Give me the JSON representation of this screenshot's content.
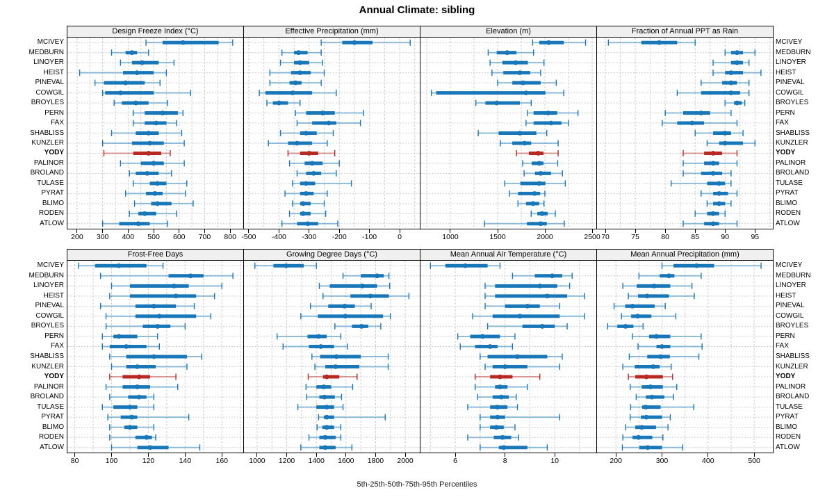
{
  "title": "Annual Climate: sibling",
  "caption": "5th-25th-50th-75th-95th Percentiles",
  "highlight_station": "YODY",
  "percentile_labels": [
    "p5",
    "p25",
    "p50",
    "p75",
    "p95"
  ],
  "stations": [
    "MCIVEY",
    "MEDBURN",
    "LINOYER",
    "HEIST",
    "PINEVAL",
    "COWGIL",
    "BROYLES",
    "PERN",
    "FAX",
    "SHABLISS",
    "KUNZLER",
    "YODY",
    "PALINOR",
    "BROLAND",
    "TULASE",
    "PYRAT",
    "BLIMO",
    "RODEN",
    "ATLOW"
  ],
  "colors": {
    "series": "#1777b8",
    "highlight": "#b92823",
    "grid": "#cfcfcf",
    "panel_header_bg": "#f0f0f0",
    "border": "#000000"
  },
  "chart_data": [
    {
      "type": "percentile-range",
      "title": "Design Freeze Index (°C)",
      "row": 0,
      "col": 0,
      "xlim": [
        162,
        854
      ],
      "ticks": [
        200,
        300,
        400,
        500,
        600,
        700,
        800
      ],
      "tick_labels": [
        "200",
        "300",
        "400",
        "500",
        "600",
        "700",
        "800"
      ],
      "values": [
        [
          470,
          535,
          615,
          755,
          810
        ],
        [
          335,
          390,
          415,
          435,
          480
        ],
        [
          370,
          415,
          455,
          520,
          580
        ],
        [
          210,
          380,
          435,
          500,
          550
        ],
        [
          270,
          305,
          390,
          465,
          525
        ],
        [
          300,
          310,
          370,
          500,
          645
        ],
        [
          345,
          375,
          430,
          480,
          555
        ],
        [
          420,
          465,
          535,
          595,
          615
        ],
        [
          420,
          465,
          510,
          550,
          590
        ],
        [
          335,
          430,
          480,
          520,
          610
        ],
        [
          300,
          415,
          485,
          540,
          620
        ],
        [
          305,
          420,
          480,
          530,
          565
        ],
        [
          370,
          450,
          500,
          540,
          620
        ],
        [
          405,
          430,
          475,
          520,
          570
        ],
        [
          420,
          485,
          515,
          550,
          630
        ],
        [
          390,
          470,
          505,
          535,
          625
        ],
        [
          425,
          490,
          515,
          570,
          655
        ],
        [
          405,
          440,
          465,
          510,
          590
        ],
        [
          300,
          365,
          440,
          485,
          555
        ]
      ]
    },
    {
      "type": "percentile-range",
      "title": "Effective Precipitation (mm)",
      "row": 0,
      "col": 1,
      "xlim": [
        -516,
        69
      ],
      "ticks": [
        -500,
        -400,
        -300,
        -200,
        -100,
        0
      ],
      "tick_labels": [
        "-500",
        "-400",
        "-300",
        "-200",
        "-100",
        "0"
      ],
      "values": [
        [
          -260,
          -190,
          -150,
          -90,
          35
        ],
        [
          -390,
          -350,
          -335,
          -305,
          -260
        ],
        [
          -395,
          -350,
          -330,
          -300,
          -255
        ],
        [
          -430,
          -360,
          -330,
          -295,
          -250
        ],
        [
          -430,
          -365,
          -345,
          -325,
          -260
        ],
        [
          -465,
          -445,
          -355,
          -290,
          -210
        ],
        [
          -440,
          -420,
          -400,
          -370,
          -330
        ],
        [
          -345,
          -310,
          -255,
          -215,
          -120
        ],
        [
          -340,
          -290,
          -235,
          -210,
          -130
        ],
        [
          -395,
          -330,
          -310,
          -275,
          -220
        ],
        [
          -435,
          -370,
          -340,
          -290,
          -240
        ],
        [
          -370,
          -330,
          -300,
          -270,
          -215
        ],
        [
          -365,
          -315,
          -290,
          -255,
          -200
        ],
        [
          -340,
          -310,
          -285,
          -260,
          -210
        ],
        [
          -355,
          -330,
          -310,
          -280,
          -160
        ],
        [
          -380,
          -330,
          -310,
          -285,
          -240
        ],
        [
          -355,
          -330,
          -320,
          -295,
          -250
        ],
        [
          -365,
          -330,
          -320,
          -295,
          -245
        ],
        [
          -390,
          -340,
          -305,
          -270,
          -205
        ]
      ]
    },
    {
      "type": "percentile-range",
      "title": "Elevation (m)",
      "row": 0,
      "col": 2,
      "xlim": [
        684,
        2551
      ],
      "ticks": [
        1000,
        1500,
        2000,
        2500
      ],
      "tick_labels": [
        "1000",
        "1500",
        "2000",
        "2500"
      ],
      "values": [
        [
          1870,
          1940,
          2040,
          2200,
          2430
        ],
        [
          1400,
          1490,
          1600,
          1700,
          1880
        ],
        [
          1420,
          1550,
          1690,
          1820,
          1990
        ],
        [
          1440,
          1560,
          1735,
          1845,
          1955
        ],
        [
          1500,
          1655,
          1770,
          1955,
          2120
        ],
        [
          800,
          850,
          1800,
          2005,
          2200
        ],
        [
          1270,
          1370,
          1490,
          1735,
          1855
        ],
        [
          1815,
          1880,
          2035,
          2130,
          2350
        ],
        [
          1800,
          1880,
          2065,
          2175,
          2250
        ],
        [
          1295,
          1510,
          1735,
          1910,
          2020
        ],
        [
          1530,
          1655,
          1785,
          1855,
          2140
        ],
        [
          1700,
          1830,
          1930,
          1985,
          2140
        ],
        [
          1765,
          1860,
          1940,
          1985,
          2135
        ],
        [
          1780,
          1895,
          1955,
          2065,
          2185
        ],
        [
          1575,
          1740,
          1940,
          2005,
          2215
        ],
        [
          1625,
          1715,
          1890,
          1950,
          2000
        ],
        [
          1715,
          1800,
          1875,
          1940,
          1990
        ],
        [
          1855,
          1920,
          1970,
          2030,
          2110
        ],
        [
          1360,
          1810,
          1955,
          2020,
          2205
        ]
      ]
    },
    {
      "type": "percentile-range",
      "title": "Fraction of Annual PPT as Rain",
      "row": 0,
      "col": 3,
      "xlim": [
        68.6,
        98.1
      ],
      "ticks": [
        70,
        75,
        80,
        85,
        90,
        95
      ],
      "tick_labels": [
        "70",
        "75",
        "80",
        "85",
        "90",
        "95"
      ],
      "values": [
        [
          70.5,
          76,
          79,
          82,
          85
        ],
        [
          90,
          91,
          92,
          93,
          95
        ],
        [
          88,
          91,
          92,
          93,
          94
        ],
        [
          88,
          90,
          91,
          93,
          96
        ],
        [
          86,
          89.5,
          91,
          92,
          94
        ],
        [
          82,
          86,
          91,
          92.5,
          94
        ],
        [
          90,
          91.5,
          92,
          92.8,
          93.3
        ],
        [
          80,
          83,
          86,
          87.5,
          91
        ],
        [
          79.5,
          82,
          84.5,
          86.5,
          92
        ],
        [
          85,
          88,
          90,
          91,
          93
        ],
        [
          87,
          89,
          90,
          93,
          95
        ],
        [
          83,
          86.5,
          88,
          89.5,
          92
        ],
        [
          83,
          86.5,
          88,
          89,
          92
        ],
        [
          83,
          86,
          88,
          89.5,
          91
        ],
        [
          81,
          87,
          89,
          90,
          91
        ],
        [
          86,
          88,
          89,
          90.5,
          92
        ],
        [
          87,
          88,
          89,
          90,
          91
        ],
        [
          85,
          87,
          88,
          89,
          90
        ],
        [
          83,
          86.5,
          88,
          89,
          92
        ]
      ]
    },
    {
      "type": "percentile-range",
      "title": "Frost-Free Days",
      "row": 1,
      "col": 0,
      "xlim": [
        76,
        172
      ],
      "ticks": [
        80,
        100,
        120,
        140,
        160
      ],
      "tick_labels": [
        "80",
        "100",
        "120",
        "140",
        "160"
      ],
      "values": [
        [
          82,
          91,
          104,
          119,
          128
        ],
        [
          94,
          131,
          143,
          150,
          166
        ],
        [
          100,
          110,
          134,
          142,
          160
        ],
        [
          99,
          110,
          135,
          146,
          156
        ],
        [
          94,
          113,
          123,
          135,
          145
        ],
        [
          97,
          113,
          126,
          146,
          154
        ],
        [
          97,
          117,
          125,
          132,
          140
        ],
        [
          95,
          101,
          104,
          114,
          125
        ],
        [
          95,
          99,
          108,
          119,
          126
        ],
        [
          99,
          108,
          123,
          141,
          149
        ],
        [
          100,
          108,
          114,
          124,
          141
        ],
        [
          99,
          106,
          115,
          121,
          135
        ],
        [
          97,
          106,
          114,
          121,
          136
        ],
        [
          99,
          109,
          115,
          119,
          123
        ],
        [
          95,
          101,
          110,
          114,
          123
        ],
        [
          98,
          105,
          111,
          114,
          142
        ],
        [
          99,
          107,
          110,
          114,
          123
        ],
        [
          99,
          113,
          119,
          122,
          124
        ],
        [
          100,
          114,
          121,
          131,
          148
        ]
      ]
    },
    {
      "type": "percentile-range",
      "title": "Growing Degree Days (°C)",
      "row": 1,
      "col": 1,
      "xlim": [
        911,
        2103
      ],
      "ticks": [
        1000,
        1200,
        1400,
        1600,
        1800,
        2000
      ],
      "tick_labels": [
        "1000",
        "1200",
        "1400",
        "1600",
        "1800",
        "2000"
      ],
      "values": [
        [
          985,
          1110,
          1195,
          1315,
          1400
        ],
        [
          1580,
          1700,
          1810,
          1855,
          1890
        ],
        [
          1420,
          1490,
          1710,
          1810,
          1895
        ],
        [
          1445,
          1630,
          1765,
          1890,
          2025
        ],
        [
          1360,
          1480,
          1590,
          1660,
          1770
        ],
        [
          1295,
          1410,
          1595,
          1850,
          1900
        ],
        [
          1525,
          1640,
          1705,
          1750,
          1835
        ],
        [
          1135,
          1340,
          1415,
          1470,
          1565
        ],
        [
          1175,
          1350,
          1430,
          1520,
          1610
        ],
        [
          1370,
          1425,
          1535,
          1700,
          1885
        ],
        [
          1390,
          1460,
          1530,
          1690,
          1885
        ],
        [
          1345,
          1445,
          1470,
          1555,
          1675
        ],
        [
          1330,
          1400,
          1450,
          1500,
          1645
        ],
        [
          1335,
          1420,
          1455,
          1525,
          1570
        ],
        [
          1275,
          1400,
          1470,
          1520,
          1580
        ],
        [
          1415,
          1450,
          1470,
          1520,
          1865
        ],
        [
          1405,
          1440,
          1470,
          1520,
          1565
        ],
        [
          1350,
          1420,
          1460,
          1530,
          1565
        ],
        [
          1295,
          1420,
          1460,
          1530,
          1640
        ]
      ]
    },
    {
      "type": "percentile-range",
      "title": "Mean Annual Air Temperature (°C)",
      "row": 1,
      "col": 2,
      "xlim": [
        4.6,
        11.7
      ],
      "ticks": [
        6,
        8,
        10
      ],
      "tick_labels": [
        "6",
        "8",
        "10"
      ],
      "values": [
        [
          5.0,
          5.6,
          6.4,
          7.3,
          7.8
        ],
        [
          8.3,
          9.2,
          9.9,
          10.3,
          10.7
        ],
        [
          7.2,
          7.6,
          9.4,
          10.1,
          10.6
        ],
        [
          7.2,
          7.6,
          9.7,
          10.5,
          11.2
        ],
        [
          7.2,
          8.0,
          8.9,
          9.4,
          10.2
        ],
        [
          6.7,
          7.5,
          8.6,
          10.2,
          11.2
        ],
        [
          7.3,
          8.7,
          9.5,
          10.0,
          10.5
        ],
        [
          6.1,
          6.6,
          7.1,
          7.8,
          8.4
        ],
        [
          6.2,
          6.8,
          7.4,
          7.7,
          8.3
        ],
        [
          7.0,
          7.3,
          8.5,
          9.7,
          10.3
        ],
        [
          7.2,
          7.5,
          8.0,
          8.9,
          10.2
        ],
        [
          6.8,
          7.4,
          7.8,
          8.3,
          9.4
        ],
        [
          6.8,
          7.6,
          7.8,
          8.1,
          8.9
        ],
        [
          6.9,
          7.5,
          7.85,
          8.15,
          8.45
        ],
        [
          6.5,
          7.4,
          7.7,
          8.1,
          8.5
        ],
        [
          7.0,
          7.4,
          7.7,
          8.0,
          10.2
        ],
        [
          7.0,
          7.4,
          7.65,
          7.95,
          8.4
        ],
        [
          6.5,
          7.55,
          7.9,
          8.25,
          8.55
        ],
        [
          7.0,
          7.75,
          7.95,
          8.9,
          9.7
        ]
      ]
    },
    {
      "type": "percentile-range",
      "title": "Mean Annual Precipitation (mm)",
      "row": 1,
      "col": 3,
      "xlim": [
        159,
        542
      ],
      "ticks": [
        200,
        300,
        400,
        500
      ],
      "tick_labels": [
        "200",
        "300",
        "400",
        "500"
      ],
      "values": [
        [
          300,
          325,
          375,
          413,
          515
        ],
        [
          250,
          295,
          315,
          327,
          385
        ],
        [
          215,
          245,
          283,
          318,
          365
        ],
        [
          227,
          248,
          268,
          315,
          370
        ],
        [
          196,
          220,
          236,
          284,
          307
        ],
        [
          212,
          233,
          247,
          277,
          330
        ],
        [
          182,
          203,
          221,
          238,
          259
        ],
        [
          236,
          272,
          288,
          318,
          385
        ],
        [
          248,
          288,
          300,
          318,
          387
        ],
        [
          229,
          268,
          297,
          317,
          380
        ],
        [
          215,
          241,
          281,
          295,
          320
        ],
        [
          227,
          242,
          266,
          302,
          323
        ],
        [
          231,
          256,
          275,
          302,
          332
        ],
        [
          244,
          265,
          278,
          305,
          325
        ],
        [
          232,
          257,
          265,
          297,
          369
        ],
        [
          231,
          254,
          266,
          300,
          318
        ],
        [
          221,
          242,
          256,
          287,
          313
        ],
        [
          215,
          236,
          249,
          279,
          302
        ],
        [
          214,
          251,
          269,
          300,
          345
        ]
      ]
    }
  ]
}
